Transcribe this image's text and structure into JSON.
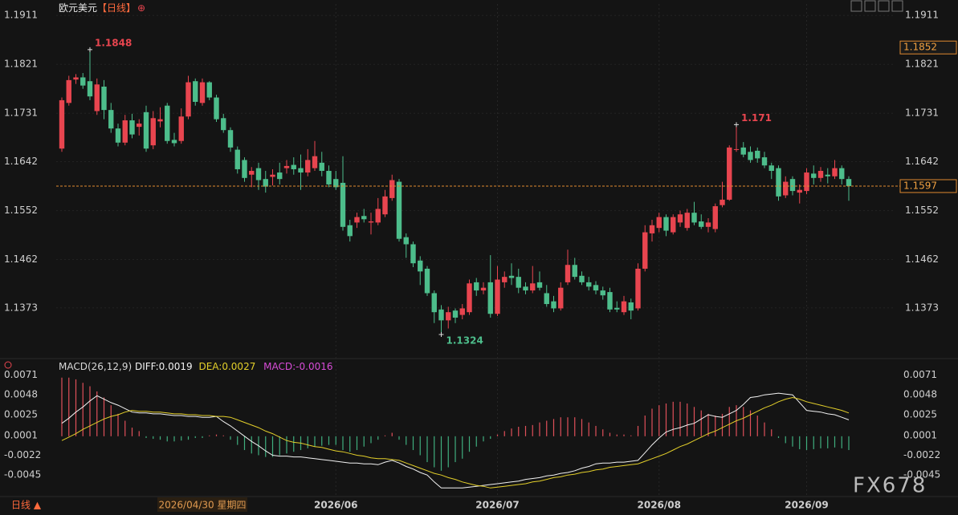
{
  "chart_data": {
    "type": "candlestick",
    "title": "欧元美元",
    "period": "【日线】",
    "title_icon": "⊕",
    "categories": [
      null,
      null,
      null,
      null,
      null,
      null,
      null,
      null,
      null,
      null,
      null,
      null,
      null,
      null,
      null,
      null,
      null,
      null,
      null,
      null,
      null,
      null,
      null,
      null,
      null,
      null,
      null,
      null,
      null,
      null,
      null,
      null,
      null,
      null,
      null,
      null,
      null,
      null,
      null,
      "2026/06",
      null,
      null,
      null,
      null,
      null,
      null,
      null,
      null,
      null,
      null,
      null,
      null,
      null,
      null,
      null,
      null,
      null,
      null,
      null,
      null,
      null,
      null,
      "2026/07",
      null,
      null,
      null,
      null,
      null,
      null,
      null,
      null,
      null,
      null,
      null,
      null,
      null,
      null,
      null,
      null,
      null,
      null,
      null,
      null,
      null,
      null,
      "2026/08",
      null,
      null,
      null,
      null,
      null,
      null,
      null,
      null,
      null,
      null,
      null,
      null,
      null,
      null,
      null,
      null,
      null,
      null,
      null,
      null,
      "2026/09",
      null,
      null,
      null,
      null,
      null,
      null
    ],
    "ohlc": [
      [
        1.1666,
        1.176,
        1.166,
        1.1755
      ],
      [
        1.175,
        1.18,
        1.1745,
        1.1792
      ],
      [
        1.1793,
        1.1803,
        1.1785,
        1.1797
      ],
      [
        1.1797,
        1.1805,
        1.1776,
        1.1782
      ],
      [
        1.179,
        1.1848,
        1.1755,
        1.1762
      ],
      [
        1.1735,
        1.1795,
        1.1728,
        1.1784
      ],
      [
        1.178,
        1.1792,
        1.172,
        1.1737
      ],
      [
        1.1737,
        1.175,
        1.1695,
        1.1703
      ],
      [
        1.1703,
        1.1712,
        1.167,
        1.1677
      ],
      [
        1.1677,
        1.1728,
        1.1672,
        1.1718
      ],
      [
        1.1718,
        1.173,
        1.1685,
        1.1692
      ],
      [
        1.1706,
        1.172,
        1.169,
        1.1712
      ],
      [
        1.1733,
        1.1745,
        1.166,
        1.1666
      ],
      [
        1.1672,
        1.1735,
        1.1665,
        1.1722
      ],
      [
        1.1716,
        1.1742,
        1.1705,
        1.172
      ],
      [
        1.1745,
        1.175,
        1.1675,
        1.168
      ],
      [
        1.1682,
        1.1695,
        1.167,
        1.1676
      ],
      [
        1.168,
        1.174,
        1.1675,
        1.1725
      ],
      [
        1.1725,
        1.18,
        1.172,
        1.1788
      ],
      [
        1.179,
        1.1795,
        1.1745,
        1.1752
      ],
      [
        1.175,
        1.1795,
        1.1745,
        1.1788
      ],
      [
        1.1788,
        1.179,
        1.1755,
        1.176
      ],
      [
        1.176,
        1.1765,
        1.1715,
        1.172
      ],
      [
        1.1722,
        1.173,
        1.1695,
        1.17
      ],
      [
        1.17,
        1.1705,
        1.166,
        1.1668
      ],
      [
        1.1664,
        1.167,
        1.162,
        1.1628
      ],
      [
        1.1645,
        1.165,
        1.1605,
        1.1612
      ],
      [
        1.1618,
        1.1632,
        1.1595,
        1.1625
      ],
      [
        1.163,
        1.164,
        1.159,
        1.1608
      ],
      [
        1.161,
        1.1625,
        1.1585,
        1.1596
      ],
      [
        1.1614,
        1.1628,
        1.1598,
        1.1618
      ],
      [
        1.1622,
        1.164,
        1.16,
        1.161
      ],
      [
        1.163,
        1.1645,
        1.162,
        1.1634
      ],
      [
        1.1636,
        1.165,
        1.1618,
        1.1628
      ],
      [
        1.163,
        1.1655,
        1.159,
        1.1622
      ],
      [
        1.1622,
        1.1665,
        1.1615,
        1.1645
      ],
      [
        1.163,
        1.168,
        1.1625,
        1.1652
      ],
      [
        1.164,
        1.166,
        1.1615,
        1.1625
      ],
      [
        1.1625,
        1.1635,
        1.1595,
        1.16
      ],
      [
        1.161,
        1.1625,
        1.159,
        1.1595
      ],
      [
        1.1603,
        1.1652,
        1.1515,
        1.1522
      ],
      [
        1.1525,
        1.1535,
        1.1495,
        1.1505
      ],
      [
        1.153,
        1.1548,
        1.152,
        1.154
      ],
      [
        1.1542,
        1.1555,
        1.153,
        1.1536
      ],
      [
        1.153,
        1.1548,
        1.1508,
        1.1532
      ],
      [
        1.153,
        1.1575,
        1.1525,
        1.1555
      ],
      [
        1.1545,
        1.159,
        1.154,
        1.1578
      ],
      [
        1.1575,
        1.1618,
        1.157,
        1.1608
      ],
      [
        1.1605,
        1.161,
        1.1495,
        1.15
      ],
      [
        1.1503,
        1.151,
        1.1465,
        1.149
      ],
      [
        1.149,
        1.1495,
        1.1448,
        1.1455
      ],
      [
        1.146,
        1.1468,
        1.1415,
        1.144
      ],
      [
        1.1445,
        1.145,
        1.1395,
        1.14
      ],
      [
        1.14,
        1.1405,
        1.1345,
        1.1365
      ],
      [
        1.137,
        1.1378,
        1.1324,
        1.135
      ],
      [
        1.135,
        1.1375,
        1.1335,
        1.1365
      ],
      [
        1.1368,
        1.1372,
        1.1345,
        1.1355
      ],
      [
        1.136,
        1.138,
        1.1352,
        1.1372
      ],
      [
        1.1365,
        1.1425,
        1.136,
        1.1418
      ],
      [
        1.142,
        1.1428,
        1.1395,
        1.1405
      ],
      [
        1.1405,
        1.142,
        1.1398,
        1.141
      ],
      [
        1.142,
        1.147,
        1.1355,
        1.1362
      ],
      [
        1.1362,
        1.145,
        1.1358,
        1.1425
      ],
      [
        1.142,
        1.144,
        1.141,
        1.143
      ],
      [
        1.1432,
        1.1455,
        1.1415,
        1.1428
      ],
      [
        1.143,
        1.1445,
        1.14,
        1.141
      ],
      [
        1.1412,
        1.142,
        1.1398,
        1.1405
      ],
      [
        1.1405,
        1.145,
        1.14,
        1.1418
      ],
      [
        1.142,
        1.144,
        1.1405,
        1.141
      ],
      [
        1.14,
        1.1415,
        1.1375,
        1.138
      ],
      [
        1.1385,
        1.1395,
        1.1365,
        1.1372
      ],
      [
        1.1372,
        1.142,
        1.1368,
        1.141
      ],
      [
        1.142,
        1.148,
        1.1415,
        1.1452
      ],
      [
        1.1452,
        1.1465,
        1.1425,
        1.143
      ],
      [
        1.1432,
        1.144,
        1.1415,
        1.142
      ],
      [
        1.142,
        1.143,
        1.1405,
        1.1412
      ],
      [
        1.1415,
        1.1422,
        1.1398,
        1.1405
      ],
      [
        1.1405,
        1.1412,
        1.1388,
        1.1396
      ],
      [
        1.1402,
        1.141,
        1.1365,
        1.137
      ],
      [
        1.1373,
        1.1385,
        1.1365,
        1.137
      ],
      [
        1.1365,
        1.1395,
        1.136,
        1.1385
      ],
      [
        1.1383,
        1.139,
        1.1352,
        1.1368
      ],
      [
        1.1372,
        1.1455,
        1.1368,
        1.1445
      ],
      [
        1.1445,
        1.1525,
        1.144,
        1.1512
      ],
      [
        1.151,
        1.1535,
        1.1495,
        1.1525
      ],
      [
        1.152,
        1.1548,
        1.1512,
        1.154
      ],
      [
        1.154,
        1.1545,
        1.1505,
        1.1515
      ],
      [
        1.1512,
        1.1545,
        1.1508,
        1.154
      ],
      [
        1.153,
        1.1552,
        1.1522,
        1.1545
      ],
      [
        1.152,
        1.1555,
        1.1515,
        1.1548
      ],
      [
        1.1548,
        1.1568,
        1.1525,
        1.153
      ],
      [
        1.1532,
        1.1545,
        1.1518,
        1.1522
      ],
      [
        1.1522,
        1.1538,
        1.1512,
        1.153
      ],
      [
        1.1518,
        1.1565,
        1.1512,
        1.156
      ],
      [
        1.1562,
        1.1605,
        1.1558,
        1.1572
      ],
      [
        1.1572,
        1.1672,
        1.157,
        1.1668
      ],
      [
        1.1665,
        1.171,
        1.166,
        1.1665
      ],
      [
        1.1668,
        1.1678,
        1.165,
        1.1655
      ],
      [
        1.166,
        1.167,
        1.164,
        1.1645
      ],
      [
        1.1662,
        1.1668,
        1.164,
        1.1648
      ],
      [
        1.165,
        1.166,
        1.163,
        1.1635
      ],
      [
        1.1635,
        1.164,
        1.161,
        1.1625
      ],
      [
        1.163,
        1.1635,
        1.157,
        1.1578
      ],
      [
        1.158,
        1.1615,
        1.1575,
        1.1605
      ],
      [
        1.161,
        1.1615,
        1.158,
        1.1588
      ],
      [
        1.1585,
        1.16,
        1.1565,
        1.159
      ],
      [
        1.1588,
        1.163,
        1.1582,
        1.1622
      ],
      [
        1.162,
        1.1635,
        1.16,
        1.1612
      ],
      [
        1.1612,
        1.1632,
        1.1605,
        1.1625
      ],
      [
        1.1618,
        1.163,
        1.1602,
        1.1615
      ],
      [
        1.1615,
        1.1645,
        1.161,
        1.163
      ],
      [
        1.163,
        1.1635,
        1.16,
        1.161
      ],
      [
        1.161,
        1.1615,
        1.157,
        1.1597
      ]
    ],
    "up_color": "#e8454f",
    "down_color": "#4dbd8b",
    "ylim": [
      1.129,
      1.1932
    ],
    "yticks": [
      1.1911,
      1.1821,
      1.1731,
      1.1642,
      1.1552,
      1.1462,
      1.1373
    ],
    "annotations": [
      {
        "index": 4,
        "value": 1.1848
      },
      {
        "index": 96,
        "value": 1.171
      },
      {
        "index": 54,
        "value": 1.1324
      }
    ],
    "last_price": 1.1597,
    "crosshair": {
      "index": 20,
      "price": 1.1852,
      "date_label": "2026/04/30 星期四"
    },
    "macd": {
      "title": "MACD(26,12,9)",
      "ylim": [
        -0.0069,
        0.0078
      ],
      "yticks": [
        0.0071,
        0.0048,
        0.0025,
        0.0001,
        -0.0022,
        -0.0045
      ],
      "series": [
        {
          "name": "DIFF:0.0019",
          "color": "#f2f2f2",
          "values": [
            0.0015,
            0.0021,
            0.0028,
            0.0034,
            0.0041,
            0.0047,
            0.0043,
            0.0039,
            0.0036,
            0.0032,
            0.0028,
            0.0027,
            0.0027,
            0.0026,
            0.0026,
            0.0025,
            0.0024,
            0.0024,
            0.0023,
            0.0023,
            0.0022,
            0.0022,
            0.0023,
            0.0017,
            0.0012,
            0.0006,
            0.0,
            -0.0006,
            -0.0011,
            -0.0017,
            -0.0022,
            -0.0023,
            -0.0023,
            -0.0024,
            -0.0024,
            -0.0025,
            -0.0026,
            -0.0027,
            -0.0028,
            -0.0029,
            -0.003,
            -0.0031,
            -0.0031,
            -0.0032,
            -0.0032,
            -0.0033,
            -0.003,
            -0.0028,
            -0.0031,
            -0.0035,
            -0.0038,
            -0.0042,
            -0.0045,
            -0.0053,
            -0.006,
            -0.006,
            -0.006,
            -0.006,
            -0.0059,
            -0.0058,
            -0.0057,
            -0.0056,
            -0.0055,
            -0.0054,
            -0.0053,
            -0.0052,
            -0.005,
            -0.0049,
            -0.0048,
            -0.0046,
            -0.0045,
            -0.0043,
            -0.0042,
            -0.004,
            -0.0037,
            -0.0035,
            -0.0032,
            -0.0031,
            -0.0031,
            -0.003,
            -0.003,
            -0.0029,
            -0.0028,
            -0.0019,
            -0.001,
            -0.0002,
            0.0005,
            0.0008,
            0.001,
            0.0013,
            0.0015,
            0.002,
            0.0025,
            0.0023,
            0.0022,
            0.0026,
            0.003,
            0.0037,
            0.0045,
            0.0046,
            0.0048,
            0.0049,
            0.005,
            0.0049,
            0.0048,
            0.0039,
            0.003,
            0.0029,
            0.0028,
            0.0026,
            0.0025,
            0.0022,
            0.0019
          ]
        },
        {
          "name": "DEA:0.0027",
          "color": "#e3cf2a",
          "values": [
            -0.0005,
            -0.0001,
            0.0003,
            0.0008,
            0.0012,
            0.0016,
            0.002,
            0.0023,
            0.0025,
            0.0028,
            0.003,
            0.0029,
            0.0029,
            0.0028,
            0.0028,
            0.0027,
            0.0026,
            0.0026,
            0.0025,
            0.0025,
            0.0024,
            0.0024,
            0.0023,
            0.0023,
            0.0022,
            0.0019,
            0.0016,
            0.0013,
            0.001,
            0.0006,
            0.0003,
            -0.0001,
            -0.0005,
            -0.0007,
            -0.0008,
            -0.001,
            -0.0012,
            -0.0013,
            -0.0015,
            -0.0017,
            -0.0018,
            -0.002,
            -0.0022,
            -0.0023,
            -0.0025,
            -0.0026,
            -0.0026,
            -0.0027,
            -0.0028,
            -0.0031,
            -0.0034,
            -0.0037,
            -0.004,
            -0.0043,
            -0.0045,
            -0.0048,
            -0.005,
            -0.0053,
            -0.0055,
            -0.0057,
            -0.0058,
            -0.006,
            -0.0059,
            -0.0058,
            -0.0057,
            -0.0056,
            -0.0055,
            -0.0053,
            -0.0052,
            -0.005,
            -0.0048,
            -0.0047,
            -0.0045,
            -0.0044,
            -0.0042,
            -0.0041,
            -0.0039,
            -0.0038,
            -0.0036,
            -0.0035,
            -0.0034,
            -0.0033,
            -0.0032,
            -0.0029,
            -0.0026,
            -0.0023,
            -0.002,
            -0.0016,
            -0.0012,
            -0.0009,
            -0.0005,
            -0.0001,
            0.0003,
            0.0006,
            0.001,
            0.0014,
            0.0018,
            0.0021,
            0.0025,
            0.0029,
            0.0033,
            0.0036,
            0.004,
            0.0043,
            0.0045,
            0.0043,
            0.004,
            0.0038,
            0.0036,
            0.0034,
            0.0032,
            0.003,
            0.0027
          ]
        }
      ],
      "histogram": {
        "name": "MACD:-0.0016",
        "color": "#d84cd8",
        "up_color": "#e0505a",
        "down_color": "#3fae7e",
        "values": [
          0.0068,
          0.0068,
          0.0066,
          0.0062,
          0.0058,
          0.0052,
          0.0045,
          0.0036,
          0.0026,
          0.0018,
          0.001,
          0.0006,
          -0.0002,
          -0.0003,
          -0.0004,
          -0.0006,
          -0.0006,
          -0.0005,
          -0.0004,
          -0.0002,
          -0.0002,
          0.0001,
          0.0002,
          0.0001,
          -0.0004,
          -0.001,
          -0.0016,
          -0.002,
          -0.0022,
          -0.0024,
          -0.0024,
          -0.0022,
          -0.002,
          -0.0018,
          -0.0016,
          -0.0014,
          -0.0012,
          -0.0011,
          -0.001,
          -0.001,
          -0.0016,
          -0.0018,
          -0.0016,
          -0.0012,
          -0.0008,
          -0.0004,
          0.0001,
          0.0004,
          -0.0004,
          -0.001,
          -0.0016,
          -0.0022,
          -0.003,
          -0.0036,
          -0.004,
          -0.0036,
          -0.003,
          -0.0026,
          -0.0018,
          -0.0012,
          -0.0006,
          -0.0003,
          0.0002,
          0.0006,
          0.0009,
          0.0011,
          0.0012,
          0.0013,
          0.0016,
          0.0018,
          0.002,
          0.0022,
          0.0022,
          0.0022,
          0.002,
          0.0016,
          0.0012,
          0.0008,
          0.0004,
          0.0002,
          0.0002,
          0.0001,
          0.0012,
          0.0024,
          0.0032,
          0.0036,
          0.0038,
          0.004,
          0.004,
          0.0038,
          0.0034,
          0.003,
          0.0026,
          0.0024,
          0.0026,
          0.0034,
          0.0036,
          0.0034,
          0.003,
          0.0024,
          0.0016,
          0.0008,
          -0.0002,
          -0.0008,
          -0.0012,
          -0.0015,
          -0.0016,
          -0.0015,
          -0.0014,
          -0.0014,
          -0.0013,
          -0.0014,
          -0.0016
        ]
      }
    },
    "footer_label": "日线 ▲",
    "watermark": "FX678"
  }
}
